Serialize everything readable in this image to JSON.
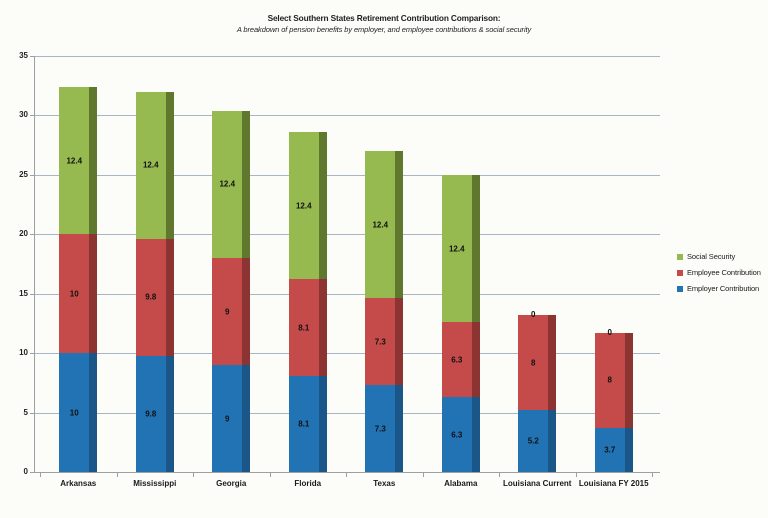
{
  "chart_data": {
    "type": "bar",
    "stacked": true,
    "title": "Select Southern States Retirement Contribution Comparison:",
    "subtitle": "A breakdown of pension benefits by employer, and employee contributions & social security",
    "categories": [
      "Arkansas",
      "Mississippi",
      "Georgia",
      "Florida",
      "Texas",
      "Alabama",
      "Louisiana Current",
      "Louisiana FY 2015"
    ],
    "series": [
      {
        "name": "Employer Contribution",
        "color": "#2273B4",
        "edge_color": "#1B5689",
        "values": [
          10,
          9.8,
          9,
          8.1,
          7.3,
          6.3,
          5.2,
          3.7
        ]
      },
      {
        "name": "Employee Contribution",
        "color": "#C44B49",
        "edge_color": "#8C3432",
        "values": [
          10,
          9.8,
          9,
          8.1,
          7.3,
          6.3,
          8,
          8
        ]
      },
      {
        "name": "Social Security",
        "color": "#96B950",
        "edge_color": "#5F782D",
        "values": [
          12.4,
          12.4,
          12.4,
          12.4,
          12.4,
          12.4,
          0,
          0
        ]
      }
    ],
    "ylim": [
      0,
      35
    ],
    "ytick_step": 5,
    "ytick_labels": [
      "0",
      "5",
      "10",
      "15",
      "20",
      "25",
      "30",
      "35"
    ],
    "grid": "horizontal",
    "legend_position": "right",
    "legend_order": [
      "Social Security",
      "Employee Contribution",
      "Employer Contribution"
    ],
    "data_labels": "shown inside segments; zero values labeled 0 at stack top"
  }
}
